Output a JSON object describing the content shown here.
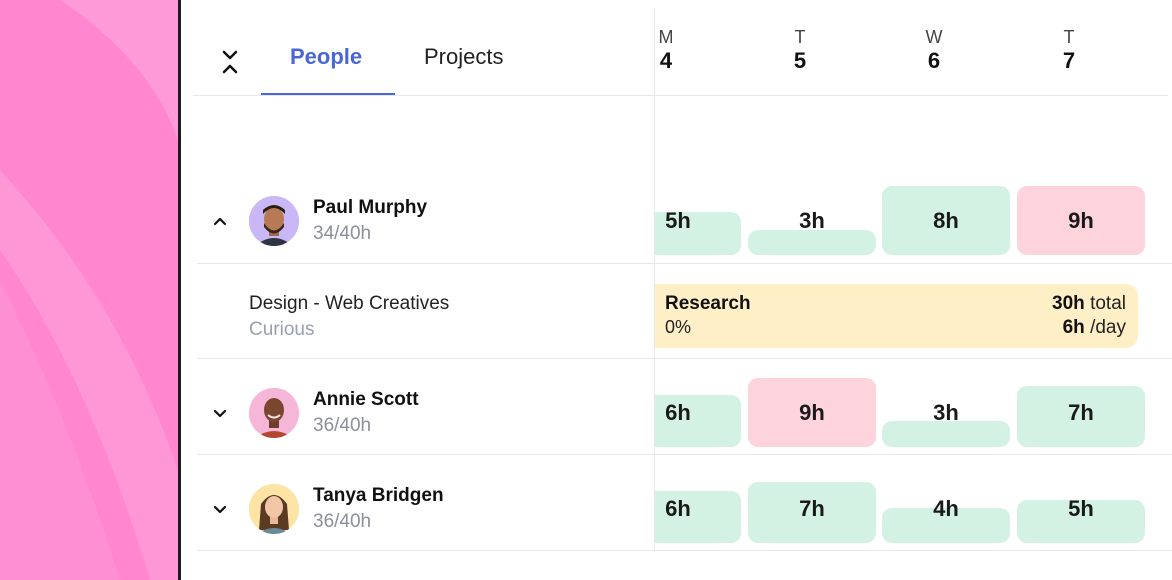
{
  "tabs": [
    {
      "label": "People",
      "active": true
    },
    {
      "label": "Projects",
      "active": false
    }
  ],
  "days": [
    {
      "dow": "M",
      "num": "4"
    },
    {
      "dow": "T",
      "num": "5"
    },
    {
      "dow": "W",
      "num": "6"
    },
    {
      "dow": "T",
      "num": "7"
    }
  ],
  "people": [
    {
      "name": "Paul Murphy",
      "hours": "34/40h",
      "expanded": true,
      "days": [
        {
          "label": "5h",
          "status": "under"
        },
        {
          "label": "3h",
          "status": "under"
        },
        {
          "label": "8h",
          "status": "full"
        },
        {
          "label": "9h",
          "status": "over"
        }
      ],
      "assignment": {
        "project": "Design - Web Creatives",
        "client": "Curious",
        "task": "Research",
        "progress": "0%",
        "total_value": "30h",
        "total_suffix": "total",
        "per_day_value": "6h",
        "per_day_suffix": "/day"
      }
    },
    {
      "name": "Annie Scott",
      "hours": "36/40h",
      "expanded": false,
      "days": [
        {
          "label": "6h",
          "status": "under"
        },
        {
          "label": "9h",
          "status": "over"
        },
        {
          "label": "3h",
          "status": "under"
        },
        {
          "label": "7h",
          "status": "under"
        }
      ]
    },
    {
      "name": "Tanya Bridgen",
      "hours": "36/40h",
      "expanded": false,
      "days": [
        {
          "label": "6h",
          "status": "under"
        },
        {
          "label": "7h",
          "status": "under"
        },
        {
          "label": "4h",
          "status": "under"
        },
        {
          "label": "5h",
          "status": "under"
        }
      ]
    }
  ],
  "colors": {
    "accent": "#4a67d6",
    "under_capacity": "#d3f2e3",
    "over_capacity": "#fdd3dc",
    "assignment": "#feefc7",
    "background_panel": "#ff86cf"
  }
}
